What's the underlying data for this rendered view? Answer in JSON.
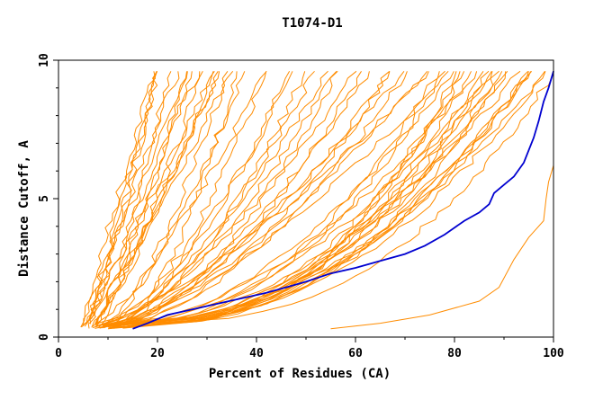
{
  "chart_data": {
    "type": "line",
    "title": "T1074-D1",
    "xlabel": "Percent of Residues (CA)",
    "ylabel": "Distance Cutoff, A",
    "xlim": [
      0,
      100
    ],
    "ylim": [
      0,
      10
    ],
    "x_ticks": [
      "0",
      "20",
      "40",
      "60",
      "80",
      "100"
    ],
    "y_ticks": [
      "0",
      "5",
      "10"
    ],
    "grid": false,
    "legend": "none",
    "colors": {
      "models": "#ff8c00",
      "highlight": "#0000d0",
      "axes": "#000000"
    },
    "highlight_series": {
      "name": "",
      "points": [
        [
          15,
          0.3
        ],
        [
          18,
          0.5
        ],
        [
          22,
          0.8
        ],
        [
          27,
          1.0
        ],
        [
          32,
          1.2
        ],
        [
          37,
          1.4
        ],
        [
          42,
          1.6
        ],
        [
          46,
          1.8
        ],
        [
          50,
          2.0
        ],
        [
          55,
          2.3
        ],
        [
          60,
          2.5
        ],
        [
          65,
          2.75
        ],
        [
          70,
          3.0
        ],
        [
          74,
          3.3
        ],
        [
          78,
          3.7
        ],
        [
          82,
          4.2
        ],
        [
          85,
          4.5
        ],
        [
          87,
          4.8
        ],
        [
          88,
          5.2
        ],
        [
          90,
          5.5
        ],
        [
          92,
          5.8
        ],
        [
          94,
          6.3
        ],
        [
          96,
          7.2
        ],
        [
          97,
          7.8
        ],
        [
          98,
          8.5
        ],
        [
          99,
          9.0
        ],
        [
          100,
          9.6
        ]
      ]
    },
    "outlier_series": {
      "name": "",
      "points": [
        [
          55,
          0.3
        ],
        [
          65,
          0.5
        ],
        [
          75,
          0.8
        ],
        [
          85,
          1.3
        ],
        [
          89,
          1.8
        ],
        [
          92,
          2.8
        ],
        [
          95,
          3.6
        ],
        [
          98,
          4.2
        ],
        [
          98.5,
          5.0
        ],
        [
          99,
          5.6
        ],
        [
          100,
          6.2
        ],
        [
          100,
          9.6
        ]
      ]
    },
    "model_series_families": [
      {
        "family": "steep",
        "count": 16,
        "start_x_range": [
          4.5,
          8
        ],
        "end_x_range": [
          18,
          35
        ],
        "end_y": 9.6
      },
      {
        "family": "middle",
        "count": 22,
        "start_x_range": [
          6,
          12
        ],
        "end_x_range": [
          35,
          78
        ],
        "end_y": 9.6
      },
      {
        "family": "shallow",
        "count": 24,
        "start_x_range": [
          8,
          13
        ],
        "end_x_range": [
          78,
          99
        ],
        "end_y": 9.6
      }
    ]
  }
}
